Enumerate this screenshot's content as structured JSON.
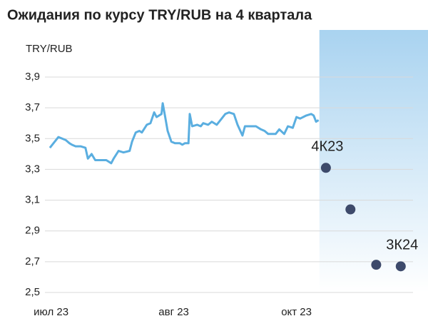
{
  "chart_data": {
    "type": "line",
    "title": "Ожидания по курсу TRY/RUB на 4 квартала",
    "y_label": "TRY/RUB",
    "ylim": [
      2.5,
      3.9
    ],
    "yticks": [
      {
        "value": 2.5,
        "label": "2,5"
      },
      {
        "value": 2.7,
        "label": "2,7"
      },
      {
        "value": 2.9,
        "label": "2,9"
      },
      {
        "value": 3.1,
        "label": "3,1"
      },
      {
        "value": 3.3,
        "label": "3,3"
      },
      {
        "value": 3.5,
        "label": "3,5"
      },
      {
        "value": 3.7,
        "label": "3,7"
      },
      {
        "value": 3.9,
        "label": "3,9"
      }
    ],
    "xlim": [
      -0.05,
      2.95
    ],
    "xticks": [
      {
        "value": 0,
        "label": "июл 23"
      },
      {
        "value": 1,
        "label": "авг 23"
      },
      {
        "value": 2,
        "label": "окт 23"
      }
    ],
    "grid": true,
    "history": {
      "color": "#5aaee0",
      "x": [
        -0.01,
        0.06,
        0.12,
        0.15,
        0.17,
        0.2,
        0.24,
        0.28,
        0.3,
        0.33,
        0.36,
        0.41,
        0.45,
        0.49,
        0.51,
        0.55,
        0.59,
        0.64,
        0.66,
        0.69,
        0.72,
        0.74,
        0.78,
        0.81,
        0.84,
        0.86,
        0.9,
        0.91,
        0.93,
        0.95,
        0.98,
        1.01,
        1.05,
        1.07,
        1.09,
        1.12,
        1.13,
        1.15,
        1.19,
        1.22,
        1.24,
        1.28,
        1.31,
        1.35,
        1.38,
        1.42,
        1.45,
        1.49,
        1.52,
        1.56,
        1.58,
        1.63,
        1.67,
        1.71,
        1.74,
        1.77,
        1.83,
        1.86,
        1.9,
        1.93,
        1.97,
        2.0,
        2.03,
        2.08,
        2.12,
        2.14,
        2.16,
        2.18
      ],
      "values": [
        3.44,
        3.51,
        3.49,
        3.47,
        3.46,
        3.45,
        3.45,
        3.44,
        3.37,
        3.4,
        3.36,
        3.36,
        3.36,
        3.34,
        3.37,
        3.42,
        3.41,
        3.42,
        3.48,
        3.54,
        3.55,
        3.54,
        3.59,
        3.6,
        3.67,
        3.64,
        3.66,
        3.73,
        3.64,
        3.55,
        3.48,
        3.47,
        3.47,
        3.46,
        3.47,
        3.47,
        3.66,
        3.58,
        3.59,
        3.58,
        3.6,
        3.59,
        3.61,
        3.59,
        3.62,
        3.66,
        3.67,
        3.66,
        3.59,
        3.52,
        3.58,
        3.58,
        3.58,
        3.56,
        3.55,
        3.53,
        3.53,
        3.56,
        3.53,
        3.58,
        3.57,
        3.64,
        3.63,
        3.65,
        3.66,
        3.65,
        3.61,
        3.62
      ]
    },
    "forecast": {
      "color": "#3d4a6b",
      "categories": [
        "4К23",
        null,
        null,
        "3К24"
      ],
      "x": [
        2.24,
        2.44,
        2.65,
        2.85
      ],
      "values": [
        3.31,
        3.04,
        2.68,
        2.67
      ]
    }
  }
}
